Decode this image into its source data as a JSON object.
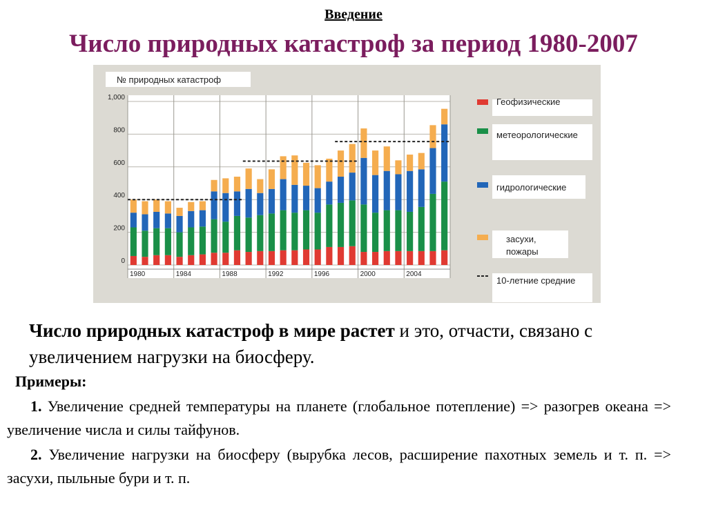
{
  "header": {
    "intro": "Введение",
    "title": "Число природных катастроф за период 1980-2007"
  },
  "chart_data": {
    "type": "bar",
    "stacked": true,
    "ylabel": "№ природных катастроф",
    "ylim": [
      0,
      1000
    ],
    "yticks": [
      "0",
      "200",
      "400",
      "600",
      "800",
      "1,000"
    ],
    "ytick_values": [
      0,
      200,
      400,
      600,
      800,
      1000
    ],
    "categories": [
      1980,
      1981,
      1982,
      1983,
      1984,
      1985,
      1986,
      1987,
      1988,
      1989,
      1990,
      1991,
      1992,
      1993,
      1994,
      1995,
      1996,
      1997,
      1998,
      1999,
      2000,
      2001,
      2002,
      2003,
      2004,
      2005,
      2006,
      2007
    ],
    "xticks": [
      "1980",
      "1984",
      "1988",
      "1992",
      "1996",
      "2000",
      "2004"
    ],
    "xtick_values": [
      1980,
      1984,
      1988,
      1992,
      1996,
      2000,
      2004
    ],
    "series": [
      {
        "name": "Геофизические",
        "color": "#e03a32",
        "values": [
          55,
          50,
          60,
          60,
          50,
          60,
          65,
          75,
          75,
          90,
          80,
          85,
          85,
          90,
          90,
          95,
          95,
          110,
          110,
          115,
          80,
          80,
          85,
          85,
          85,
          85,
          85,
          90
        ]
      },
      {
        "name": "метеорологические",
        "color": "#1a8f48",
        "values": [
          175,
          160,
          165,
          165,
          150,
          170,
          170,
          205,
          190,
          210,
          210,
          220,
          230,
          245,
          230,
          240,
          225,
          260,
          270,
          280,
          290,
          240,
          250,
          250,
          240,
          270,
          350,
          420
        ]
      },
      {
        "name": "гидрологические",
        "color": "#2266b8",
        "values": [
          90,
          100,
          100,
          90,
          100,
          100,
          100,
          170,
          175,
          150,
          175,
          135,
          150,
          190,
          170,
          150,
          150,
          140,
          160,
          170,
          285,
          230,
          240,
          220,
          250,
          230,
          280,
          350
        ]
      },
      {
        "name": "засухи, пожары",
        "color": "#f5ad4f",
        "values": [
          80,
          80,
          75,
          75,
          50,
          55,
          55,
          70,
          90,
          90,
          125,
          85,
          120,
          140,
          180,
          140,
          140,
          140,
          160,
          175,
          180,
          150,
          150,
          85,
          100,
          100,
          140,
          95
        ]
      }
    ],
    "decade_averages": [
      {
        "label": "1980s",
        "from": 1980,
        "to": 1989,
        "value": 400
      },
      {
        "label": "1990s",
        "from": 1990,
        "to": 1999,
        "value": 635
      },
      {
        "label": "2000s",
        "from": 1998,
        "to": 2007,
        "value": 755
      }
    ],
    "legend": {
      "placement": "right",
      "items": [
        {
          "label": "Геофизические",
          "color": "#e03a32",
          "marker": "box"
        },
        {
          "label": "метеорологические",
          "color": "#1a8f48",
          "marker": "box"
        },
        {
          "label": "гидрологические",
          "color": "#2266b8",
          "marker": "box"
        },
        {
          "label": "засухи, пожары",
          "color": "#f5ad4f",
          "marker": "box"
        },
        {
          "label": "10-летние средние",
          "color": "#222222",
          "marker": "dash"
        }
      ]
    }
  },
  "body": {
    "bold_part": "Число природных катастроф в мире растет",
    "rest_part": " и это, отчасти, связано с увеличением нагрузки на биосферу.",
    "examples_title": "Примеры:",
    "ex1_num": "1.",
    "ex1_text": " Увеличение средней температуры на планете (глобальное потепление) => разогрев океана => увеличение числа и силы тайфунов.",
    "ex2_num": "2.",
    "ex2_text": " Увеличение нагрузки на биосферу (вырубка лесов, расширение пахотных земель и т. п.  => засухи, пыльные бури и т. п."
  }
}
